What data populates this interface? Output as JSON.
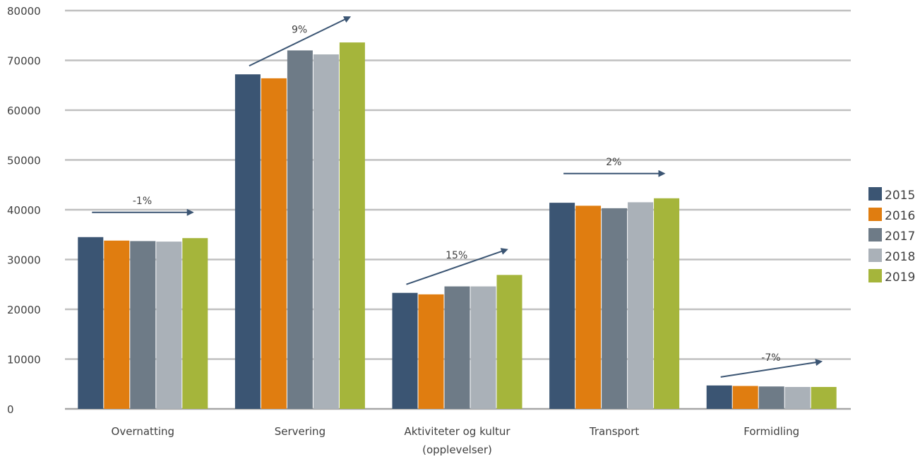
{
  "chart_data": {
    "type": "bar",
    "title": "",
    "xlabel": "",
    "ylabel": "",
    "ylim": [
      0,
      80000
    ],
    "yticks": [
      0,
      10000,
      20000,
      30000,
      40000,
      50000,
      60000,
      70000,
      80000
    ],
    "grid": true,
    "legend_position": "right",
    "categories": [
      [
        "Overnatting"
      ],
      [
        "Servering"
      ],
      [
        "Aktiviteter og kultur",
        "(opplevelser)"
      ],
      [
        "Transport"
      ],
      [
        "Formidling"
      ]
    ],
    "series": [
      {
        "name": "2015",
        "color": "#3b5573",
        "values": [
          34500,
          67200,
          23300,
          41400,
          4700
        ]
      },
      {
        "name": "2016",
        "color": "#e07d10",
        "values": [
          33800,
          66400,
          23000,
          40800,
          4600
        ]
      },
      {
        "name": "2017",
        "color": "#6e7b87",
        "values": [
          33700,
          72000,
          24600,
          40300,
          4500
        ]
      },
      {
        "name": "2018",
        "color": "#aab1b8",
        "values": [
          33600,
          71200,
          24600,
          41500,
          4400
        ]
      },
      {
        "name": "2019",
        "color": "#a5b53b",
        "values": [
          34300,
          73600,
          26900,
          42300,
          4400
        ]
      }
    ],
    "annotations": [
      {
        "category": 0,
        "label": "-1%"
      },
      {
        "category": 1,
        "label": "9%"
      },
      {
        "category": 2,
        "label": "15%"
      },
      {
        "category": 3,
        "label": "2%"
      },
      {
        "category": 4,
        "label": "-7%"
      }
    ]
  }
}
